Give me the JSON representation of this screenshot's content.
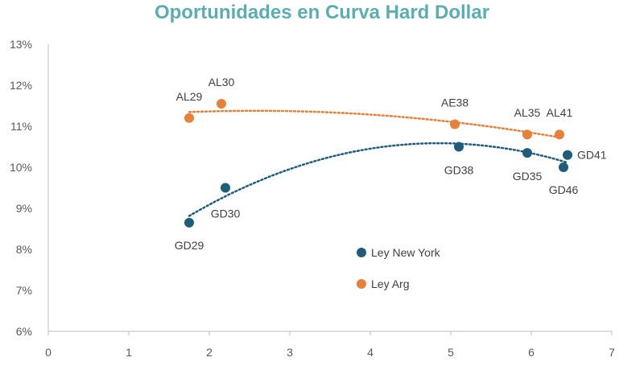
{
  "chart_data": {
    "type": "scatter",
    "title": "Oportunidades  en Curva Hard Dollar",
    "xlabel": "",
    "ylabel": "",
    "xlim": [
      0,
      7
    ],
    "ylim": [
      6,
      13
    ],
    "x_ticks": [
      "0",
      "1",
      "2",
      "3",
      "4",
      "5",
      "6",
      "7"
    ],
    "y_ticks": [
      "6%",
      "7%",
      "8%",
      "9%",
      "10%",
      "11%",
      "12%",
      "13%"
    ],
    "grid": false,
    "legend_position": "bottom-center",
    "trendline": "polynomial (dotted)",
    "series": [
      {
        "name": "Ley New York",
        "color": "#1f5c7a",
        "points": [
          {
            "label": "GD29",
            "x": 1.75,
            "y": 8.65
          },
          {
            "label": "GD30",
            "x": 2.2,
            "y": 9.5
          },
          {
            "label": "GD38",
            "x": 5.1,
            "y": 10.5
          },
          {
            "label": "GD35",
            "x": 5.95,
            "y": 10.35
          },
          {
            "label": "GD46",
            "x": 6.4,
            "y": 10.0
          },
          {
            "label": "GD41",
            "x": 6.45,
            "y": 10.3
          }
        ]
      },
      {
        "name": "Ley Arg",
        "color": "#e8803a",
        "points": [
          {
            "label": "AL29",
            "x": 1.75,
            "y": 11.2
          },
          {
            "label": "AL30",
            "x": 2.15,
            "y": 11.55
          },
          {
            "label": "AE38",
            "x": 5.05,
            "y": 11.05
          },
          {
            "label": "AL35",
            "x": 5.95,
            "y": 10.8
          },
          {
            "label": "AL41",
            "x": 6.35,
            "y": 10.8
          }
        ]
      }
    ]
  }
}
